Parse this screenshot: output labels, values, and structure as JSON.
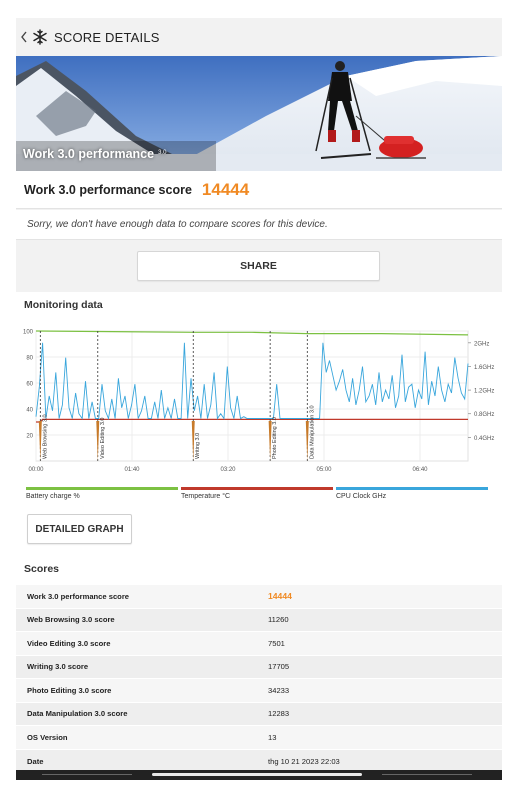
{
  "header": {
    "title": "SCORE DETAILS",
    "back_icon": "chevron-left-icon",
    "logo_icon": "snowflake-icon"
  },
  "hero": {
    "title": "Work 3.0 performance",
    "sup": "3.0"
  },
  "score": {
    "label": "Work 3.0 performance score",
    "value": "14444",
    "accent_color": "#f08a24"
  },
  "notice": "Sorry, we don't have enough data to compare scores for this device.",
  "share_label": "SHARE",
  "monitoring": {
    "title": "Monitoring data",
    "detailed_graph_label": "DETAILED GRAPH",
    "legend": [
      {
        "name": "Battery charge %",
        "color": "#7cc142"
      },
      {
        "name": "Temperature °C",
        "color": "#c0392b"
      },
      {
        "name": "CPU Clock GHz",
        "color": "#39a6dc"
      }
    ]
  },
  "chart_data": {
    "type": "line",
    "x_tick_labels": [
      "00:00",
      "01:40",
      "03:20",
      "05:00",
      "06:40"
    ],
    "y_left_ticks": [
      "20",
      "40",
      "60",
      "80",
      "100"
    ],
    "y_right_ticks": [
      "0.4GHz",
      "0.8GHz",
      "1.2GHz",
      "1.6GHz",
      "2GHz"
    ],
    "ylim_left": [
      0,
      100
    ],
    "ylim_right": [
      0,
      2.2
    ],
    "phase_markers": [
      {
        "label": "Web Browsing 3.0",
        "t": 0.01
      },
      {
        "label": "Video Editing 3.0",
        "t": 0.143
      },
      {
        "label": "Writing 3.0",
        "t": 0.364
      },
      {
        "label": "Photo Editing 3.0",
        "t": 0.542
      },
      {
        "label": "Data Manipulation 3.0",
        "t": 0.628
      }
    ],
    "series": [
      {
        "name": "Battery charge %",
        "axis": "left",
        "t": [
          0,
          0.364,
          0.5,
          0.628,
          0.8,
          1
        ],
        "values": [
          100,
          99,
          99,
          98,
          98,
          97
        ]
      },
      {
        "name": "Temperature °C",
        "axis": "left",
        "t": [
          0,
          0.01,
          0.015,
          1
        ],
        "values": [
          30,
          30,
          32,
          32
        ]
      },
      {
        "name": "CPU Clock GHz",
        "axis": "right",
        "values": [
          0.75,
          1.25,
          2.0,
          0.72,
          1.1,
          0.85,
          1.5,
          0.72,
          0.95,
          1.75,
          0.9,
          0.72,
          1.15,
          0.8,
          0.72,
          1.35,
          0.72,
          1.0,
          0.72,
          0.72,
          1.3,
          0.85,
          0.72,
          1.05,
          0.72,
          1.4,
          0.9,
          1.1,
          0.72,
          0.95,
          1.3,
          0.72,
          0.85,
          1.1,
          0.72,
          0.72,
          1.0,
          0.72,
          1.2,
          0.72,
          0.9,
          0.72,
          1.05,
          0.72,
          0.72,
          2.0,
          0.72,
          1.4,
          0.85,
          1.1,
          0.72,
          1.3,
          0.72,
          0.95,
          1.5,
          0.72,
          0.8,
          0.72,
          1.6,
          0.9,
          0.72,
          1.1,
          0.72,
          0.75,
          0.72,
          0.72,
          0.72,
          0.72,
          0.72,
          0.72,
          0.72,
          0.72,
          0.72,
          1.3,
          0.72,
          0.72,
          0.72,
          0.72,
          0.72,
          0.72,
          0.72,
          0.72,
          0.72,
          0.72,
          0.72,
          0.72,
          0.72,
          2.0,
          1.5,
          1.7,
          1.45,
          1.2,
          1.35,
          1.55,
          1.2,
          1.0,
          1.4,
          0.95,
          1.2,
          1.6,
          1.0,
          1.1,
          1.3,
          0.95,
          1.5,
          1.0,
          1.2,
          1.05,
          1.45,
          0.9,
          1.1,
          1.8,
          1.0,
          1.25,
          1.3,
          0.9,
          1.2,
          1.05,
          1.85,
          0.95,
          1.35,
          1.1,
          1.6,
          1.2,
          1.0,
          1.3,
          1.15,
          1.75,
          1.4,
          1.15,
          1.05,
          1.65
        ]
      }
    ]
  },
  "scores": {
    "title": "Scores",
    "rows": [
      {
        "label": "Work 3.0 performance score",
        "value": "14444"
      },
      {
        "label": "Web Browsing 3.0 score",
        "value": "11260"
      },
      {
        "label": "Video Editing 3.0 score",
        "value": "7501"
      },
      {
        "label": "Writing 3.0 score",
        "value": "17705"
      },
      {
        "label": "Photo Editing 3.0 score",
        "value": "34233"
      },
      {
        "label": "Data Manipulation 3.0 score",
        "value": "12283"
      },
      {
        "label": "OS Version",
        "value": "13"
      },
      {
        "label": "Date",
        "value": "thg 10 21 2023 22:03"
      }
    ]
  }
}
